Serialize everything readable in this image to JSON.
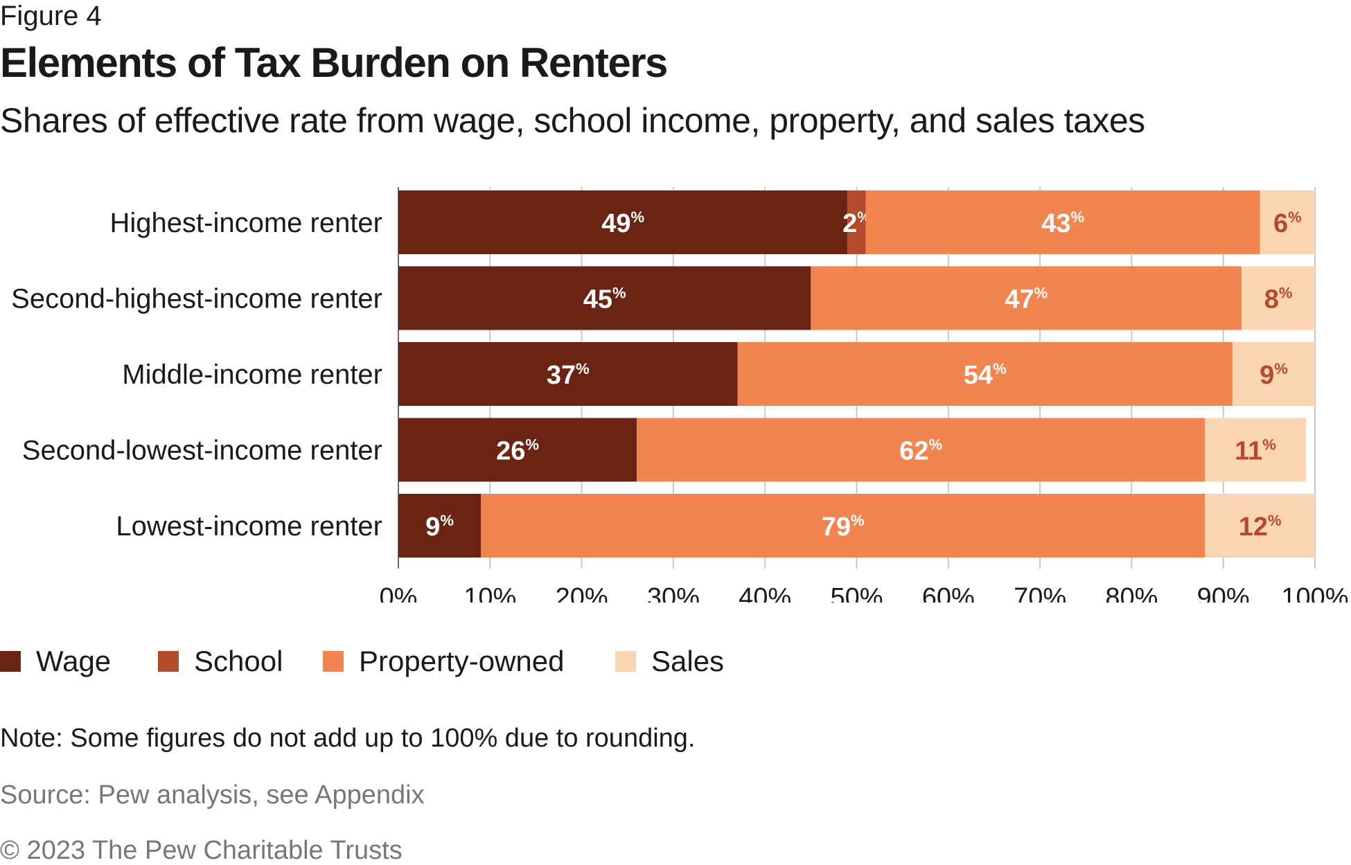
{
  "figure_label": "Figure 4",
  "title": "Elements of Tax Burden on Renters",
  "subtitle": "Shares of effective rate from wage, school income, property, and sales taxes",
  "note": "Note: Some figures do not add up to 100% due to rounding.",
  "source": "Source: Pew analysis, see Appendix",
  "copyright": "© 2023 The Pew Charitable Trusts",
  "colors": {
    "wage": "#6b2314",
    "school": "#b34a2c",
    "property": "#f2844f",
    "sales": "#fbd4b2",
    "label_light": "#ffffff",
    "label_dark": "#b34a2c",
    "grid": "#c8c8c8",
    "axis": "#6a6a6a"
  },
  "legend": [
    {
      "label": "Wage",
      "color": "#6b2314"
    },
    {
      "label": "School",
      "color": "#b34a2c"
    },
    {
      "label": "Property-owned",
      "color": "#f2844f"
    },
    {
      "label": "Sales",
      "color": "#fbd4b2"
    }
  ],
  "chart_data": {
    "type": "bar",
    "orientation": "horizontal",
    "stacked": true,
    "categories": [
      "Highest-income renter",
      "Second-highest-income renter",
      "Middle-income renter",
      "Second-lowest-income renter",
      "Lowest-income renter"
    ],
    "series": [
      {
        "name": "Wage",
        "values": [
          49,
          45,
          37,
          26,
          9
        ],
        "labels": [
          "49",
          "45",
          "37",
          "26",
          "9"
        ]
      },
      {
        "name": "School",
        "values": [
          2,
          0,
          0,
          0,
          0
        ],
        "labels": [
          "2",
          "",
          "",
          "",
          ""
        ]
      },
      {
        "name": "Property-owned",
        "values": [
          43,
          47,
          54,
          62,
          79
        ],
        "labels": [
          "43",
          "47",
          "54",
          "62",
          "79"
        ]
      },
      {
        "name": "Sales",
        "values": [
          6,
          8,
          9,
          11,
          12
        ],
        "labels": [
          "6",
          "8",
          "9",
          "11",
          "12"
        ]
      }
    ],
    "label_suffix": "%",
    "x_ticks": [
      "0%",
      "10%",
      "20%",
      "30%",
      "40%",
      "50%",
      "60%",
      "70%",
      "80%",
      "90%",
      "100%"
    ],
    "xlim": [
      0,
      100
    ],
    "grid": true,
    "legend_position": "bottom-left"
  }
}
